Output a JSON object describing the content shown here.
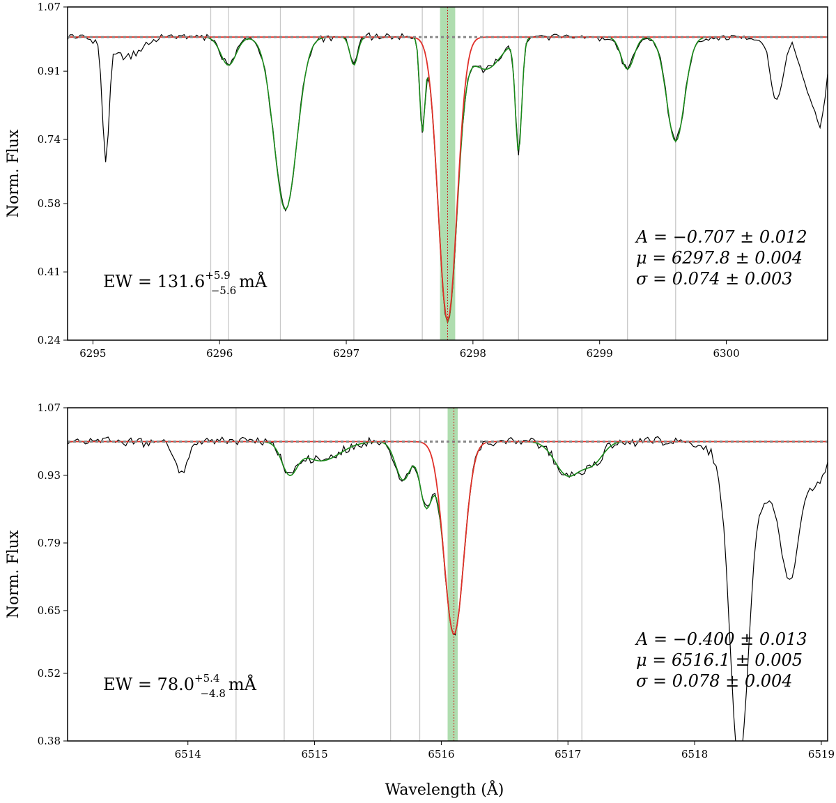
{
  "chart_data": [
    {
      "type": "line",
      "ylabel": "Norm. Flux",
      "xlabel": "",
      "xlim": [
        6294.8,
        6300.8
      ],
      "ylim": [
        0.24,
        1.07
      ],
      "xticks": [
        6295,
        6296,
        6297,
        6298,
        6299,
        6300
      ],
      "yticks": [
        "0.24",
        "0.41",
        "0.58",
        "0.74",
        "0.91",
        "1.07"
      ],
      "continuum": 0.995,
      "center": 6297.8,
      "band": [
        6297.74,
        6297.86
      ],
      "vlines": [
        6295.93,
        6296.07,
        6296.48,
        6297.06,
        6297.6,
        6298.08,
        6298.36,
        6299.22,
        6299.6
      ],
      "gaussian": {
        "A": -0.707,
        "mu": 6297.8,
        "sigma": 0.074
      },
      "model_lines": [
        {
          "mu": 6296.07,
          "depth": 0.07,
          "sigma": 0.06
        },
        {
          "mu": 6296.52,
          "depth": 0.43,
          "sigma": 0.09
        },
        {
          "mu": 6297.06,
          "depth": 0.07,
          "sigma": 0.03
        },
        {
          "mu": 6297.6,
          "depth": 0.22,
          "sigma": 0.02
        },
        {
          "mu": 6298.1,
          "depth": 0.08,
          "sigma": 0.12
        },
        {
          "mu": 6298.36,
          "depth": 0.28,
          "sigma": 0.025
        },
        {
          "mu": 6299.22,
          "depth": 0.08,
          "sigma": 0.05
        },
        {
          "mu": 6299.6,
          "depth": 0.26,
          "sigma": 0.07
        }
      ],
      "obs_extra": [
        {
          "mu": 6295.1,
          "depth": 0.29,
          "sigma": 0.025
        },
        {
          "mu": 6295.25,
          "depth": 0.05,
          "sigma": 0.12
        },
        {
          "mu": 6300.4,
          "depth": 0.16,
          "sigma": 0.05
        },
        {
          "mu": 6300.65,
          "depth": 0.14,
          "sigma": 0.06
        },
        {
          "mu": 6300.75,
          "depth": 0.18,
          "sigma": 0.04
        }
      ],
      "ew": {
        "prefix": "EW = 131.6",
        "sup": "+5.9",
        "sub": "−5.6",
        "unit": "mÅ"
      },
      "fit_text": [
        "A = −0.707 ± 0.012",
        "μ = 6297.8 ± 0.004",
        "σ = 0.074 ± 0.003"
      ]
    },
    {
      "type": "line",
      "ylabel": "Norm. Flux",
      "xlabel": "Wavelength (Å)",
      "xlim": [
        6513.05,
        6519.05
      ],
      "ylim": [
        0.38,
        1.07
      ],
      "xticks": [
        6514,
        6515,
        6516,
        6517,
        6518,
        6519
      ],
      "yticks": [
        "0.38",
        "0.52",
        "0.65",
        "0.79",
        "0.93",
        "1.07"
      ],
      "continuum": 1.0,
      "center": 6516.1,
      "band": [
        6516.05,
        6516.13
      ],
      "vlines": [
        6514.38,
        6514.76,
        6514.99,
        6515.6,
        6515.83,
        6516.92,
        6517.11
      ],
      "gaussian": {
        "A": -0.4,
        "mu": 6516.1,
        "sigma": 0.078
      },
      "model_lines": [
        {
          "mu": 6514.8,
          "depth": 0.06,
          "sigma": 0.06
        },
        {
          "mu": 6515.05,
          "depth": 0.04,
          "sigma": 0.15
        },
        {
          "mu": 6515.7,
          "depth": 0.08,
          "sigma": 0.06
        },
        {
          "mu": 6515.88,
          "depth": 0.13,
          "sigma": 0.05
        },
        {
          "mu": 6517.0,
          "depth": 0.07,
          "sigma": 0.1
        },
        {
          "mu": 6517.2,
          "depth": 0.04,
          "sigma": 0.08
        }
      ],
      "obs_extra": [
        {
          "mu": 6513.95,
          "depth": 0.07,
          "sigma": 0.05
        },
        {
          "mu": 6518.35,
          "depth": 0.58,
          "sigma": 0.07
        },
        {
          "mu": 6518.5,
          "depth": 0.12,
          "sigma": 0.2
        },
        {
          "mu": 6518.75,
          "depth": 0.22,
          "sigma": 0.07
        },
        {
          "mu": 6518.95,
          "depth": 0.08,
          "sigma": 0.1
        }
      ],
      "ew": {
        "prefix": "EW = 78.0",
        "sup": "+5.4",
        "sub": "−4.8",
        "unit": "mÅ"
      },
      "fit_text": [
        "A = −0.400 ± 0.013",
        "μ = 6516.1 ± 0.005",
        "σ = 0.078 ± 0.004"
      ]
    }
  ],
  "colors": {
    "observed": "#000000",
    "model": "#1a8a1a",
    "gaussian": "#e0302a",
    "continuum": "#888888",
    "band": "#9bd49b",
    "vline": "#c8c8c8",
    "center": "#cc2222"
  }
}
